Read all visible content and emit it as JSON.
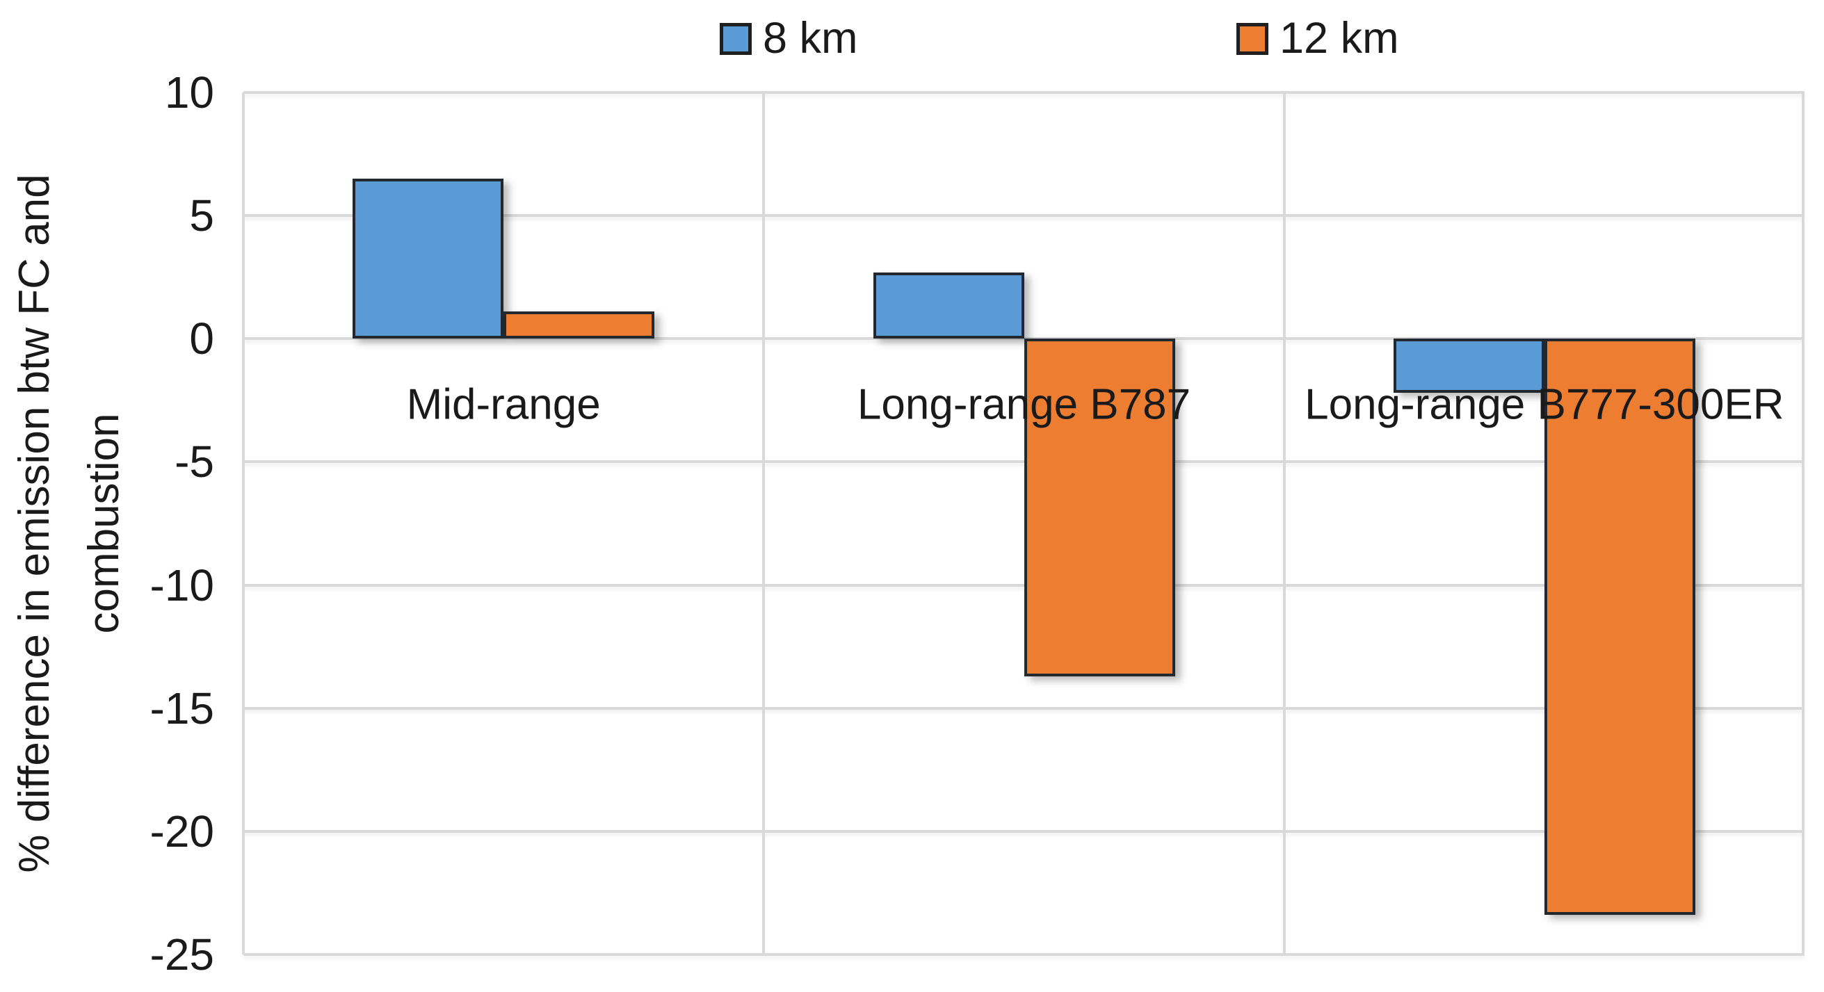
{
  "chart_data": {
    "type": "bar",
    "title": "",
    "categories": [
      "Mid-range",
      "Long-range B787",
      "Long-range B777-300ER"
    ],
    "series": [
      {
        "name": "8 km",
        "color": "#5B9BD5",
        "values": [
          6.5,
          2.7,
          -2.2
        ]
      },
      {
        "name": "12 km",
        "color": "#ED7D31",
        "values": [
          1.1,
          -13.7,
          -23.4
        ]
      }
    ],
    "xlabel": "",
    "ylabel": "% difference in emission btw FC and combustion",
    "ylim": [
      -25,
      10
    ],
    "ytick_step": 5,
    "yticks": [
      10,
      5,
      0,
      -5,
      -10,
      -15,
      -20,
      -25
    ],
    "grid": true,
    "legend_position": "top",
    "colors": {
      "bar_outline": "#23282e",
      "gridline": "#d9d9d9",
      "text": "#1a1a1a"
    }
  }
}
